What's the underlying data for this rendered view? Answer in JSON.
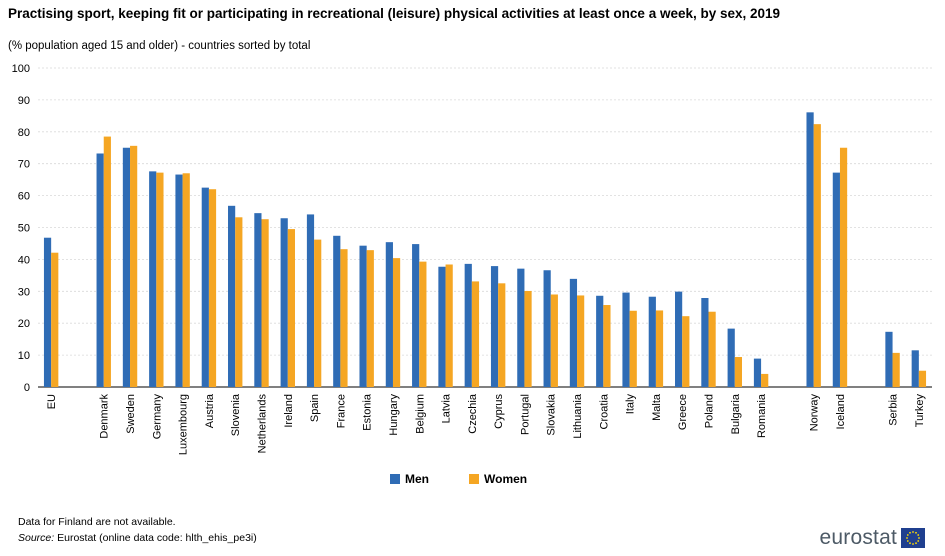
{
  "title": "Practising sport, keeping fit or participating in recreational (leisure) physical activities at least once a week, by sex, 2019",
  "subtitle": "(% population aged 15 and older) - countries sorted by total",
  "note": "Data for Finland are not available.",
  "source_label": "Source:",
  "source_text": "Eurostat (online data code: hlth_ehis_pe3i)",
  "logo_text": "eurostat",
  "colors": {
    "men": "#2f6cb5",
    "women": "#f5a623",
    "grid": "#d9d9d9"
  },
  "chart_data": {
    "type": "bar",
    "title": "Practising sport, keeping fit or participating in recreational (leisure) physical activities at least once a week, by sex, 2019",
    "subtitle": "(% population aged 15 and older) - countries sorted by total",
    "categories": [
      "EU",
      "",
      "Denmark",
      "Sweden",
      "Germany",
      "Luxembourg",
      "Austria",
      "Slovenia",
      "Netherlands",
      "Ireland",
      "Spain",
      "France",
      "Estonia",
      "Hungary",
      "Belgium",
      "Latvia",
      "Czechia",
      "Cyprus",
      "Portugal",
      "Slovakia",
      "Lithuania",
      "Croatia",
      "Italy",
      "Malta",
      "Greece",
      "Poland",
      "Bulgaria",
      "Romania",
      "",
      "Norway",
      "Iceland",
      "",
      "Serbia",
      "Turkey"
    ],
    "series": [
      {
        "name": "Men",
        "values": [
          46.8,
          null,
          73.2,
          75.0,
          67.6,
          66.6,
          62.5,
          56.8,
          54.5,
          52.9,
          54.1,
          47.4,
          44.3,
          45.4,
          44.8,
          37.7,
          38.6,
          37.9,
          37.1,
          36.6,
          33.9,
          28.6,
          29.6,
          28.3,
          29.9,
          27.9,
          18.3,
          8.9,
          null,
          86.1,
          67.2,
          null,
          17.3,
          11.5
        ]
      },
      {
        "name": "Women",
        "values": [
          42.1,
          null,
          78.5,
          75.6,
          67.2,
          67.0,
          62.0,
          53.2,
          52.6,
          49.5,
          46.2,
          43.2,
          42.9,
          40.4,
          39.3,
          38.4,
          33.1,
          32.5,
          30.1,
          29.0,
          28.7,
          25.7,
          23.9,
          24.0,
          22.2,
          23.6,
          9.4,
          4.1,
          null,
          82.4,
          75.0,
          null,
          10.7,
          5.1
        ]
      }
    ],
    "ylim": [
      0,
      100
    ],
    "yticks": [
      0,
      10,
      20,
      30,
      40,
      50,
      60,
      70,
      80,
      90,
      100
    ],
    "xlabel": "",
    "ylabel": "",
    "grid": true,
    "legend": "bottom-center"
  }
}
